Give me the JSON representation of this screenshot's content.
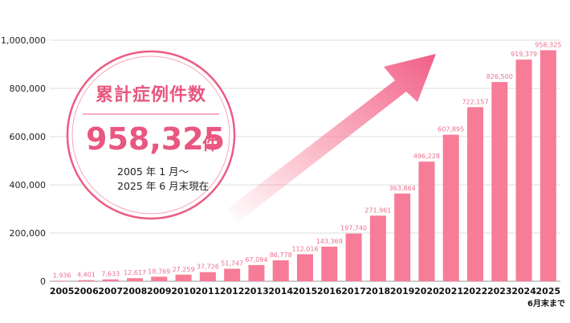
{
  "chart_data": {
    "type": "bar",
    "categories": [
      "2005",
      "2006",
      "2007",
      "2008",
      "2009",
      "2010",
      "2011",
      "2012",
      "2013",
      "2014",
      "2015",
      "2016",
      "2017",
      "2018",
      "2019",
      "2020",
      "2021",
      "2022",
      "2023",
      "2024",
      "2025"
    ],
    "values": [
      1936,
      4401,
      7633,
      12617,
      18769,
      27259,
      37726,
      51747,
      67094,
      86778,
      112016,
      143369,
      197740,
      271961,
      363864,
      496228,
      607895,
      722157,
      826500,
      919379,
      958325
    ],
    "data_labels": [
      "1,936",
      "4,401",
      "7,633",
      "12,617",
      "18,769",
      "27,259",
      "37,726",
      "51,747",
      "67,094",
      "86,778",
      "112,016",
      "143,369",
      "197,740",
      "271,961",
      "363,864",
      "496,228",
      "607,895",
      "722,157",
      "826,500",
      "919,379",
      "958,325"
    ],
    "y_ticks": [
      {
        "value": 0,
        "label": "0"
      },
      {
        "value": 200000,
        "label": "200,000"
      },
      {
        "value": 400000,
        "label": "400,000"
      },
      {
        "value": 600000,
        "label": "600,000"
      },
      {
        "value": 800000,
        "label": "800,000"
      },
      {
        "value": 1000000,
        "label": "1,000,000"
      }
    ],
    "ylim": [
      0,
      1000000
    ],
    "grid": true,
    "bar_color": "#f77c97",
    "label_color": "#ec6f8e",
    "footnote": "6月末まで"
  },
  "badge": {
    "title": "累計症例件数",
    "value": "958,325",
    "unit": "件",
    "period_line1": "2005 年 1 月〜",
    "period_line2": "2025 年 6 月末現在",
    "accent_color": "#e8577f"
  }
}
